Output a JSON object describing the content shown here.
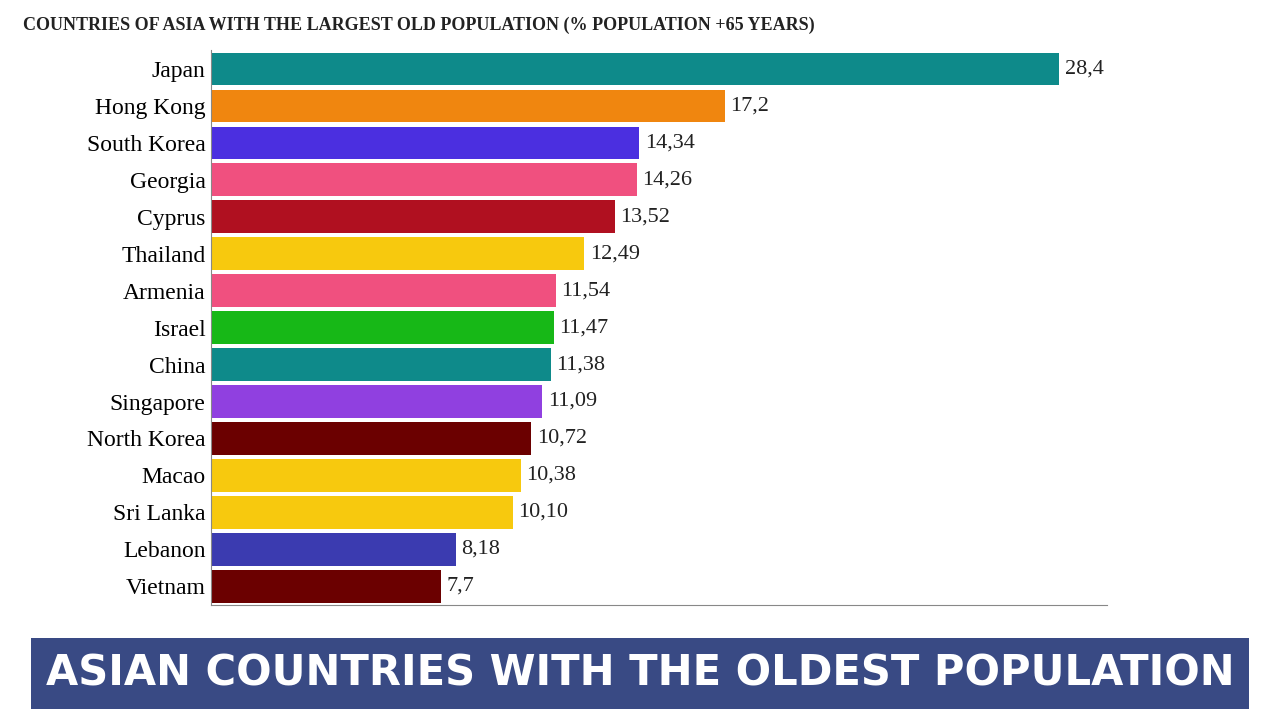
{
  "chart_data": {
    "type": "bar",
    "orientation": "horizontal",
    "title": "COUNTRIES OF ASIA WITH THE LARGEST OLD POPULATION (% POPULATION +65 YEARS)",
    "subtitle": "ASIAN COUNTRIES WITH THE OLDEST POPULATION",
    "categories": [
      "Japan",
      "Hong Kong",
      "South Korea",
      "Georgia",
      "Cyprus",
      "Thailand",
      "Armenia",
      "Israel",
      "China",
      "Singapore",
      "North Korea",
      "Macao",
      "Sri Lanka",
      "Lebanon",
      "Vietnam"
    ],
    "values": [
      28.4,
      17.2,
      14.34,
      14.26,
      13.52,
      12.49,
      11.54,
      11.47,
      11.38,
      11.09,
      10.72,
      10.38,
      10.1,
      8.18,
      7.7
    ],
    "value_labels": [
      "28,4",
      "17,2",
      "14,34",
      "14,26",
      "13,52",
      "12,49",
      "11,54",
      "11,47",
      "11,38",
      "11,09",
      "10,72",
      "10,38",
      "10,10",
      "8,18",
      "7,7"
    ],
    "colors": [
      "#0e8a8a",
      "#f0860f",
      "#4b2fe0",
      "#f0507f",
      "#b01020",
      "#f7c90e",
      "#f0507f",
      "#17b817",
      "#0e8a8a",
      "#9040e0",
      "#6b0000",
      "#f7c90e",
      "#f7c90e",
      "#3b3bb0",
      "#6b0000"
    ],
    "xlim": [
      0,
      30
    ],
    "xticks": [],
    "data_labels": true,
    "tick_labels": "y",
    "grid": false
  }
}
